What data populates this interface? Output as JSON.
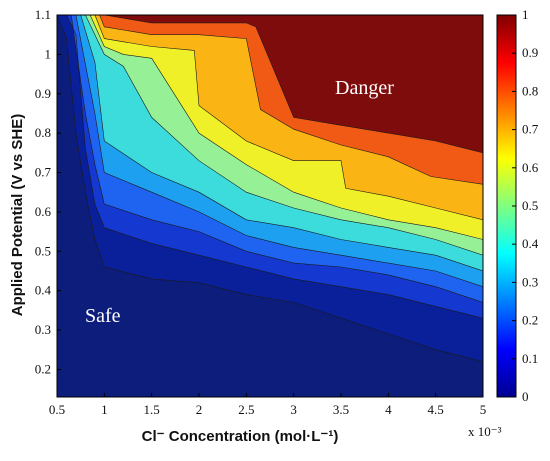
{
  "chart_data": {
    "type": "heatmap",
    "subtype": "filled-contour",
    "xlabel": "Cl⁻ Concentration (mol·L⁻¹)",
    "ylabel": "Applied Potential (V vs SHE)",
    "x_multiplier_label": "x 10⁻³",
    "xlim": [
      0.5,
      5.0
    ],
    "ylim": [
      0.13,
      1.1
    ],
    "x_ticks": [
      "0.5",
      "1",
      "1.5",
      "2",
      "2.5",
      "3",
      "3.5",
      "4",
      "4.5",
      "5"
    ],
    "y_ticks": [
      "0.2",
      "0.3",
      "0.4",
      "0.5",
      "0.6",
      "0.7",
      "0.8",
      "0.9",
      "1",
      "1.1"
    ],
    "colorbar": {
      "range": [
        0,
        1
      ],
      "ticks": [
        "0",
        "0.1",
        "0.2",
        "0.3",
        "0.4",
        "0.5",
        "0.6",
        "0.7",
        "0.8",
        "0.9",
        "1"
      ],
      "colormap": "jet"
    },
    "annotations": [
      {
        "text": "Danger",
        "x": 3.7,
        "y": 0.96
      },
      {
        "text": "Safe",
        "x": 1.0,
        "y": 0.33
      }
    ],
    "contour_levels": [
      {
        "level": 0.1,
        "color": "#0a209a",
        "x": [
          0.5,
          0.6,
          0.7,
          0.8,
          0.9,
          1.0,
          1.5,
          2.0,
          2.5,
          3.0,
          3.5,
          4.0,
          4.5,
          5.0
        ],
        "y": [
          1.1,
          1.04,
          0.8,
          0.65,
          0.53,
          0.46,
          0.43,
          0.42,
          0.39,
          0.37,
          0.33,
          0.29,
          0.25,
          0.22
        ]
      },
      {
        "level": 0.2,
        "color": "#1438d0",
        "x": [
          0.6,
          0.7,
          0.8,
          0.9,
          1.0,
          1.5,
          2.0,
          2.5,
          3.0,
          3.5,
          4.0,
          4.5,
          5.0
        ],
        "y": [
          1.1,
          1.05,
          0.76,
          0.62,
          0.56,
          0.52,
          0.49,
          0.46,
          0.43,
          0.41,
          0.39,
          0.36,
          0.33
        ]
      },
      {
        "level": 0.3,
        "color": "#1e64f0",
        "x": [
          0.65,
          0.8,
          0.9,
          1.0,
          1.5,
          2.0,
          2.5,
          3.0,
          3.5,
          4.0,
          4.5,
          5.0
        ],
        "y": [
          1.1,
          0.85,
          0.72,
          0.62,
          0.58,
          0.55,
          0.5,
          0.47,
          0.46,
          0.44,
          0.41,
          0.37
        ]
      },
      {
        "level": 0.4,
        "color": "#1ea0f0",
        "x": [
          0.7,
          0.9,
          1.0,
          1.5,
          2.0,
          2.5,
          3.0,
          3.5,
          4.0,
          4.5,
          5.0
        ],
        "y": [
          1.1,
          0.85,
          0.7,
          0.65,
          0.6,
          0.54,
          0.51,
          0.49,
          0.47,
          0.45,
          0.41
        ]
      },
      {
        "level": 0.5,
        "color": "#3cdcdc",
        "x": [
          0.75,
          0.9,
          1.0,
          1.5,
          2.0,
          2.5,
          3.0,
          3.5,
          4.0,
          4.5,
          5.0
        ],
        "y": [
          1.1,
          0.98,
          0.78,
          0.7,
          0.65,
          0.58,
          0.56,
          0.53,
          0.51,
          0.49,
          0.45
        ]
      },
      {
        "level": 0.6,
        "color": "#96f096",
        "x": [
          0.8,
          1.0,
          1.2,
          1.5,
          2.0,
          2.5,
          3.0,
          3.5,
          4.0,
          4.5,
          5.0
        ],
        "y": [
          1.1,
          1.0,
          0.97,
          0.84,
          0.73,
          0.65,
          0.61,
          0.58,
          0.56,
          0.53,
          0.49
        ]
      },
      {
        "level": 0.7,
        "color": "#f0f028",
        "x": [
          0.85,
          1.0,
          1.2,
          1.5,
          2.0,
          2.5,
          3.0,
          3.5,
          4.0,
          4.5,
          5.0
        ],
        "y": [
          1.1,
          1.02,
          1.0,
          0.99,
          0.8,
          0.72,
          0.65,
          0.61,
          0.58,
          0.56,
          0.53
        ]
      },
      {
        "level": 0.8,
        "color": "#fab414",
        "x": [
          0.9,
          1.0,
          1.5,
          1.95,
          2.0,
          2.5,
          3.0,
          3.5,
          3.55,
          4.0,
          4.5,
          5.0
        ],
        "y": [
          1.1,
          1.04,
          1.02,
          1.01,
          0.87,
          0.78,
          0.73,
          0.73,
          0.66,
          0.64,
          0.61,
          0.58
        ]
      },
      {
        "level": 0.9,
        "color": "#f05a14",
        "x": [
          0.95,
          1.0,
          1.5,
          2.0,
          2.5,
          2.65,
          3.0,
          3.5,
          4.0,
          4.45,
          5.0
        ],
        "y": [
          1.1,
          1.07,
          1.05,
          1.05,
          1.04,
          0.86,
          0.81,
          0.77,
          0.74,
          0.69,
          0.67
        ]
      },
      {
        "level": 1.0,
        "color": "#d21414",
        "x": [
          1.0,
          1.5,
          2.0,
          2.5,
          2.6,
          3.0,
          3.5,
          4.0,
          4.5,
          5.0
        ],
        "y": [
          1.1,
          1.08,
          1.08,
          1.08,
          1.07,
          0.84,
          0.82,
          0.8,
          0.78,
          0.75
        ]
      }
    ],
    "background_colors": {
      "low": "#0d1d7c",
      "high": "#7f0c0c"
    }
  }
}
